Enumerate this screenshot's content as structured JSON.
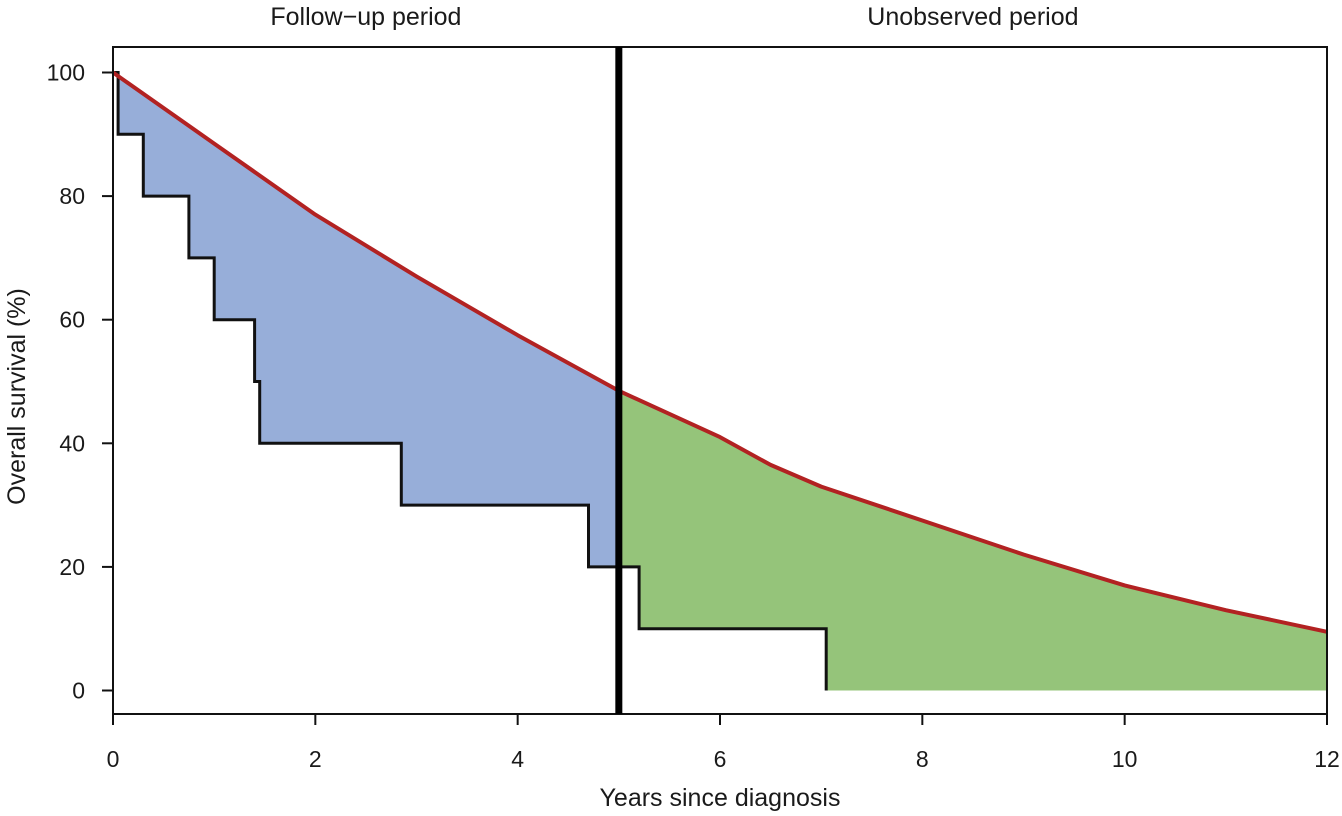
{
  "chart_data": {
    "type": "line",
    "title": "",
    "xlabel": "Years since diagnosis",
    "ylabel": "Overall survival (%)",
    "xlim": [
      0,
      12
    ],
    "ylim": [
      0,
      100
    ],
    "xticks": [
      0,
      2,
      4,
      6,
      8,
      10,
      12
    ],
    "yticks": [
      0,
      20,
      40,
      60,
      80,
      100
    ],
    "grid": false,
    "annotations": [
      {
        "text": "Follow−up period",
        "x": 2.5
      },
      {
        "text": "Unobserved period",
        "x": 8.5
      }
    ],
    "divider_x": 5,
    "series": [
      {
        "kind": "parametric-curve",
        "color": "#b22222",
        "x": [
          0,
          1,
          2,
          3,
          4,
          5,
          6,
          6.5,
          7,
          8,
          9,
          10,
          11,
          12
        ],
        "y": [
          100,
          88.5,
          77,
          67,
          57.5,
          48.5,
          41,
          36.5,
          33,
          27.5,
          22,
          17,
          13,
          9.5
        ]
      },
      {
        "kind": "kaplan-meier-step",
        "color": "#111111",
        "x": [
          0,
          0.05,
          0.3,
          0.75,
          1.0,
          1.4,
          1.45,
          2.85,
          4.7,
          5.2,
          7.05
        ],
        "y": [
          100,
          90,
          80,
          70,
          60,
          50,
          40,
          30,
          20,
          10,
          0
        ]
      }
    ],
    "shaded_regions": [
      {
        "range": [
          0,
          5
        ],
        "color": "#97aed9"
      },
      {
        "range": [
          5,
          12
        ],
        "color": "#95c47a"
      }
    ]
  }
}
